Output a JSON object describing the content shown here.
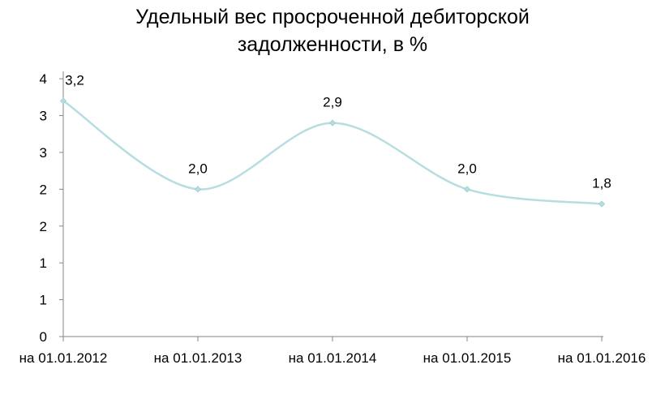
{
  "chart_data": {
    "type": "line",
    "title_lines": [
      "Удельный вес просроченной дебиторской",
      "задолженности, в %"
    ],
    "categories": [
      "на 01.01.2012",
      "на 01.01.2013",
      "на 01.01.2014",
      "на 01.01.2015",
      "на 01.01.2016"
    ],
    "series": [
      {
        "values": [
          3.2,
          2.0,
          2.9,
          2.0,
          1.8
        ],
        "data_labels": [
          "3,2",
          "2,0",
          "2,9",
          "2,0",
          "1,8"
        ],
        "color": "#b7dde0",
        "smooth": true,
        "marker": "diamond"
      }
    ],
    "ylim": [
      0,
      3.6
    ],
    "y_ticks": [
      0,
      0.5,
      1,
      1.5,
      2,
      2.5,
      3,
      3.5
    ],
    "y_tick_labels": [
      "0",
      "1",
      "1",
      "2",
      "2",
      "3",
      "3",
      "4"
    ],
    "grid": false,
    "legend": "none"
  }
}
